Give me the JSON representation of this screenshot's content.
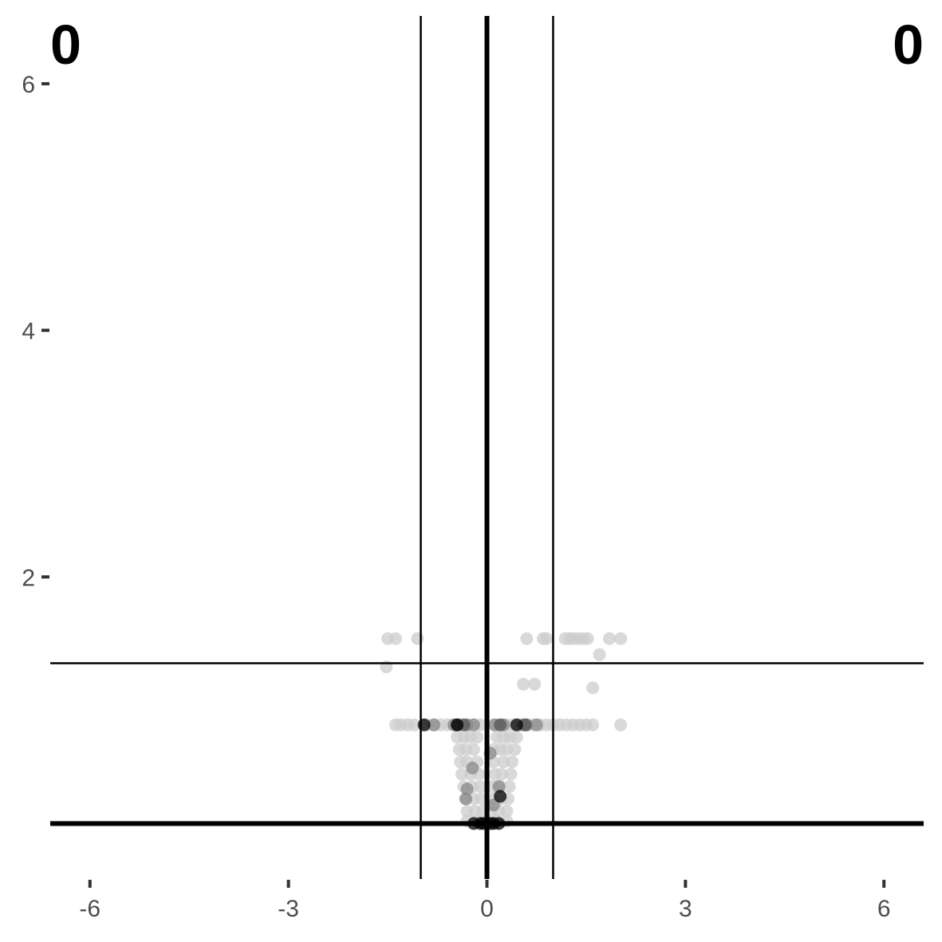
{
  "chart_data": {
    "type": "scatter",
    "title": "",
    "xlabel": "",
    "ylabel": "",
    "xlim": [
      -6.6,
      6.6
    ],
    "ylim": [
      -0.45,
      6.55
    ],
    "x_ticks": [
      {
        "value": -6,
        "label": "-6"
      },
      {
        "value": -3,
        "label": "-3"
      },
      {
        "value": 0,
        "label": "0"
      },
      {
        "value": 3,
        "label": "3"
      },
      {
        "value": 6,
        "label": "6"
      }
    ],
    "y_ticks": [
      {
        "value": 2,
        "label": "2"
      },
      {
        "value": 4,
        "label": "4"
      },
      {
        "value": 6,
        "label": "6"
      }
    ],
    "grid": false,
    "reference_lines": {
      "vertical": [
        {
          "x": -1,
          "weight": "thin"
        },
        {
          "x": 0,
          "weight": "thick"
        },
        {
          "x": 1,
          "weight": "thin"
        }
      ],
      "horizontal": [
        {
          "y": 1.3,
          "weight": "thin"
        },
        {
          "y": 0,
          "weight": "thick"
        }
      ]
    },
    "corner_labels": {
      "top_left": "0",
      "top_right": "0"
    },
    "colors": {
      "light": "#cccccc",
      "mid": "#888888",
      "dark": "#555555",
      "black": "#000000"
    },
    "series": [
      {
        "color_key": "light",
        "points": [
          [
            -1.5,
            1.5
          ],
          [
            -1.38,
            1.5
          ],
          [
            -1.05,
            1.5
          ],
          [
            -1.52,
            1.27
          ],
          [
            0.6,
            1.5
          ],
          [
            0.85,
            1.5
          ],
          [
            0.9,
            1.5
          ],
          [
            1.18,
            1.5
          ],
          [
            1.25,
            1.5
          ],
          [
            1.3,
            1.5
          ],
          [
            1.38,
            1.5
          ],
          [
            1.45,
            1.5
          ],
          [
            1.52,
            1.5
          ],
          [
            1.85,
            1.5
          ],
          [
            2.02,
            1.5
          ],
          [
            1.7,
            1.37
          ],
          [
            0.55,
            1.13
          ],
          [
            0.72,
            1.13
          ],
          [
            1.6,
            1.1
          ],
          [
            -1.38,
            0.8
          ],
          [
            -1.3,
            0.8
          ],
          [
            -1.2,
            0.8
          ],
          [
            -1.1,
            0.8
          ],
          [
            -0.9,
            0.8
          ],
          [
            -0.8,
            0.8
          ],
          [
            -0.7,
            0.8
          ],
          [
            -0.6,
            0.8
          ],
          [
            -0.5,
            0.8
          ],
          [
            -0.4,
            0.8
          ],
          [
            -0.3,
            0.8
          ],
          [
            -0.2,
            0.8
          ],
          [
            -0.1,
            0.8
          ],
          [
            0.1,
            0.8
          ],
          [
            0.2,
            0.8
          ],
          [
            0.3,
            0.8
          ],
          [
            0.4,
            0.8
          ],
          [
            0.5,
            0.8
          ],
          [
            0.6,
            0.8
          ],
          [
            0.7,
            0.8
          ],
          [
            0.8,
            0.8
          ],
          [
            0.9,
            0.8
          ],
          [
            1.0,
            0.8
          ],
          [
            1.1,
            0.8
          ],
          [
            1.2,
            0.8
          ],
          [
            1.3,
            0.8
          ],
          [
            1.4,
            0.8
          ],
          [
            1.5,
            0.8
          ],
          [
            1.6,
            0.8
          ],
          [
            2.02,
            0.8
          ],
          [
            -0.45,
            0.7
          ],
          [
            -0.35,
            0.7
          ],
          [
            -0.25,
            0.7
          ],
          [
            -0.15,
            0.7
          ],
          [
            0.15,
            0.7
          ],
          [
            0.25,
            0.7
          ],
          [
            0.35,
            0.7
          ],
          [
            0.45,
            0.7
          ],
          [
            -0.42,
            0.6
          ],
          [
            -0.32,
            0.6
          ],
          [
            -0.2,
            0.6
          ],
          [
            0.1,
            0.6
          ],
          [
            0.2,
            0.6
          ],
          [
            0.3,
            0.6
          ],
          [
            0.42,
            0.6
          ],
          [
            -0.4,
            0.5
          ],
          [
            -0.3,
            0.5
          ],
          [
            -0.15,
            0.5
          ],
          [
            0.1,
            0.5
          ],
          [
            0.25,
            0.5
          ],
          [
            0.38,
            0.5
          ],
          [
            -0.38,
            0.4
          ],
          [
            -0.25,
            0.4
          ],
          [
            -0.12,
            0.4
          ],
          [
            0.12,
            0.4
          ],
          [
            0.22,
            0.4
          ],
          [
            0.36,
            0.4
          ],
          [
            -0.35,
            0.3
          ],
          [
            -0.22,
            0.3
          ],
          [
            -0.1,
            0.3
          ],
          [
            0.08,
            0.3
          ],
          [
            0.2,
            0.3
          ],
          [
            0.34,
            0.3
          ],
          [
            -0.32,
            0.2
          ],
          [
            -0.2,
            0.2
          ],
          [
            -0.08,
            0.2
          ],
          [
            0.1,
            0.2
          ],
          [
            0.22,
            0.2
          ],
          [
            0.32,
            0.2
          ],
          [
            -0.3,
            0.1
          ],
          [
            -0.18,
            0.1
          ],
          [
            -0.06,
            0.1
          ],
          [
            0.06,
            0.1
          ],
          [
            0.18,
            0.1
          ],
          [
            0.3,
            0.1
          ],
          [
            -0.3,
            0.02
          ],
          [
            -0.15,
            0.02
          ],
          [
            0.15,
            0.02
          ],
          [
            0.3,
            0.02
          ]
        ]
      },
      {
        "color_key": "mid",
        "points": [
          [
            -0.8,
            0.8
          ],
          [
            -0.5,
            0.8
          ],
          [
            -0.3,
            0.8
          ],
          [
            -0.2,
            0.8
          ],
          [
            0.12,
            0.8
          ],
          [
            0.25,
            0.8
          ],
          [
            0.6,
            0.8
          ],
          [
            0.75,
            0.8
          ],
          [
            0.55,
            0.8
          ],
          [
            0.05,
            0.57
          ],
          [
            -0.22,
            0.45
          ],
          [
            0.18,
            0.3
          ],
          [
            -0.3,
            0.28
          ],
          [
            -0.32,
            0.2
          ],
          [
            0.1,
            0.15
          ]
        ]
      },
      {
        "color_key": "dark",
        "points": [
          [
            -0.45,
            0.8
          ],
          [
            -0.35,
            0.8
          ],
          [
            0.2,
            0.8
          ],
          [
            0.58,
            0.8
          ]
        ]
      },
      {
        "color_key": "black",
        "points": [
          [
            -0.95,
            0.8
          ],
          [
            -0.45,
            0.8
          ],
          [
            0.45,
            0.8
          ],
          [
            0.2,
            0.22
          ],
          [
            -0.2,
            0.0
          ],
          [
            -0.1,
            0.0
          ],
          [
            -0.05,
            0.0
          ],
          [
            0.05,
            0.0
          ],
          [
            0.1,
            0.0
          ],
          [
            0.18,
            0.0
          ]
        ]
      }
    ]
  }
}
